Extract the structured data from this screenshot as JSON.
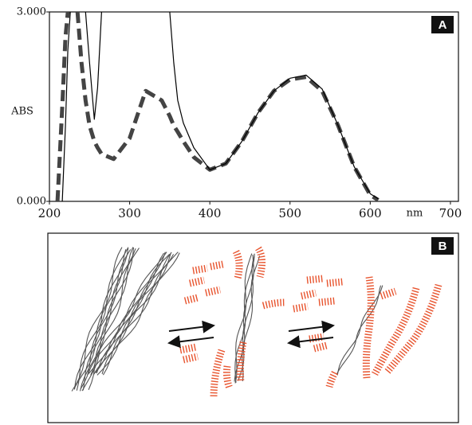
{
  "chart_data": {
    "type": "line",
    "panel_label": "A",
    "xlabel": "nm",
    "ylabel": "ABS",
    "xlim": [
      200,
      710
    ],
    "ylim": [
      0,
      3
    ],
    "xticks": [
      200,
      300,
      400,
      500,
      600,
      700
    ],
    "yticks": [
      {
        "value": 0,
        "label": "0.000"
      },
      {
        "value": 3,
        "label": "3.000"
      }
    ],
    "x": [
      210,
      216,
      220,
      223,
      226,
      230,
      235,
      240,
      245,
      250,
      256,
      260,
      265,
      280,
      300,
      320,
      340,
      350,
      355,
      360,
      367,
      380,
      400,
      420,
      440,
      460,
      480,
      500,
      520,
      540,
      560,
      580,
      600,
      610
    ],
    "series": [
      {
        "color": "#444444",
        "style": "dashed",
        "values": [
          0,
          1.5,
          2.6,
          3,
          null,
          null,
          3,
          2.2,
          1.6,
          1.2,
          0.95,
          0.85,
          0.75,
          0.67,
          1.0,
          1.75,
          1.6,
          1.35,
          1.2,
          1.1,
          0.95,
          0.7,
          0.5,
          0.6,
          0.95,
          1.4,
          1.75,
          1.93,
          1.97,
          1.75,
          1.2,
          0.55,
          0.1,
          0.02
        ]
      },
      {
        "color": "#000000",
        "style": "solid",
        "values": [
          null,
          0,
          1.2,
          2.4,
          3,
          null,
          null,
          null,
          3,
          2.2,
          1.3,
          1.8,
          3,
          null,
          null,
          null,
          null,
          3,
          2.2,
          1.6,
          1.24,
          0.85,
          0.5,
          0.6,
          0.95,
          1.4,
          1.75,
          1.95,
          2.0,
          1.78,
          1.2,
          0.55,
          0.12,
          0.04
        ]
      }
    ]
  },
  "diagram": {
    "panel_label": "B"
  }
}
